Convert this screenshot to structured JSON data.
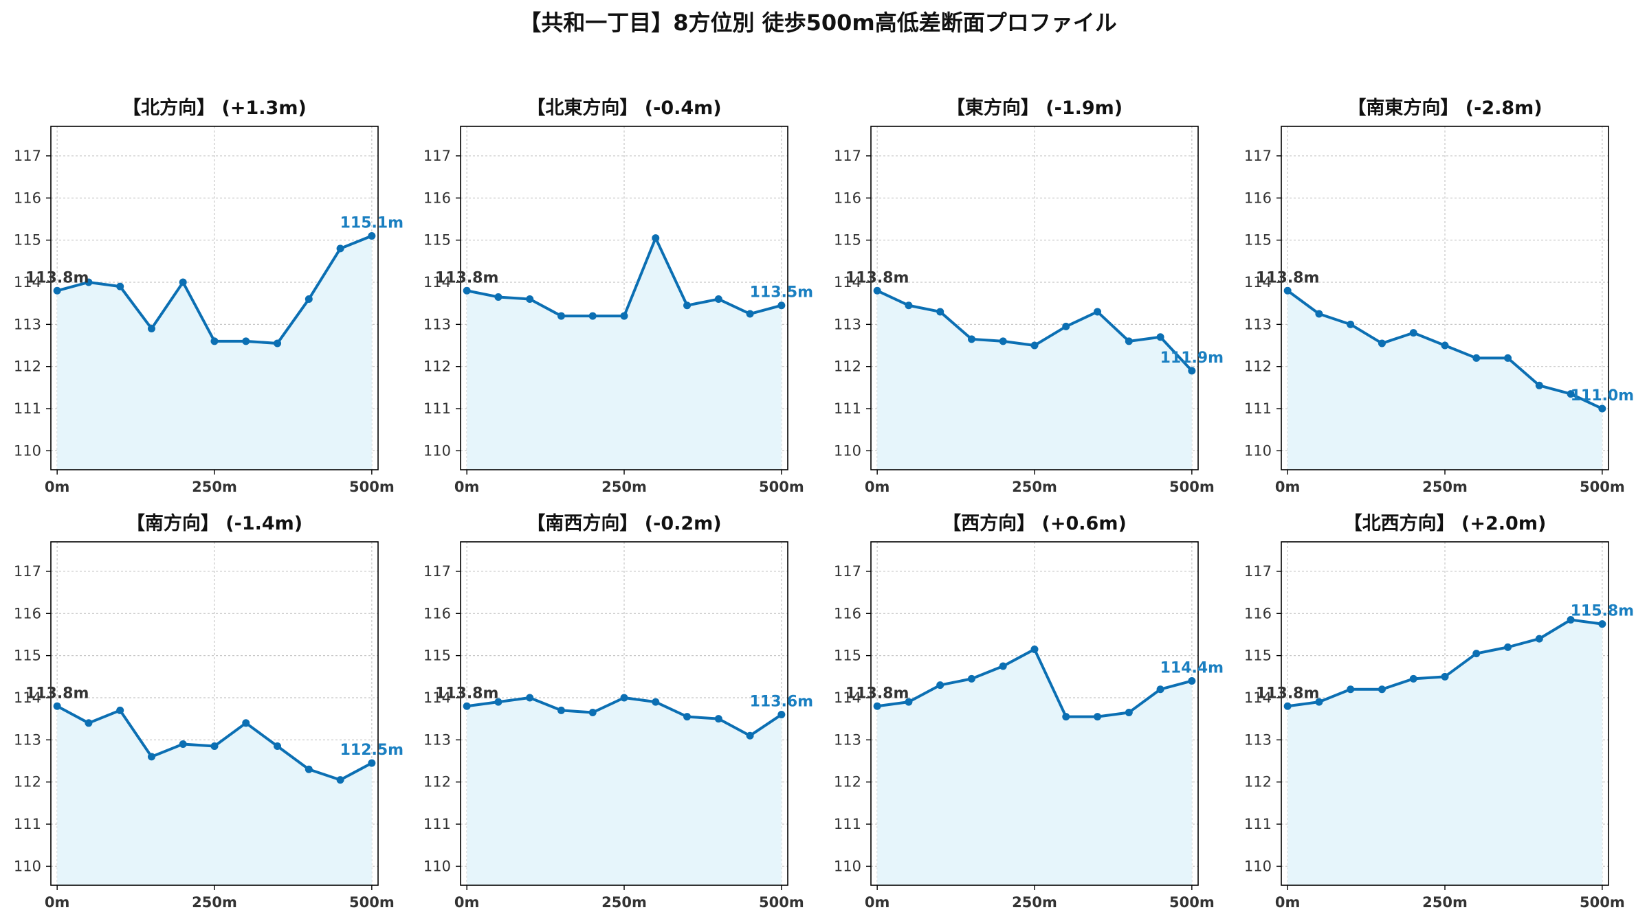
{
  "figure": {
    "title": "【共和一丁目】8方位別 徒歩500m高低差断面プロファイル"
  },
  "colors": {
    "line": "#1f77b4",
    "line_dark": "#0b6fb3",
    "fill": "#e6f5fb",
    "grid": "#c8c8c8",
    "axis": "#000000",
    "tick_text": "#333333",
    "start_label": "#333333",
    "end_label": "#1a7fc1"
  },
  "chart_data": [
    {
      "type": "area",
      "title": "【北方向】 (+1.3m)",
      "x": [
        0,
        50,
        100,
        150,
        200,
        250,
        300,
        350,
        400,
        450,
        500
      ],
      "values": [
        113.8,
        114.0,
        113.9,
        112.9,
        114.0,
        112.6,
        112.6,
        112.55,
        113.6,
        114.8,
        115.1
      ],
      "xticks": [
        0,
        250,
        500
      ],
      "xtick_labels": [
        "0m",
        "250m",
        "500m"
      ],
      "yticks": [
        110,
        111,
        112,
        113,
        114,
        115,
        116,
        117
      ],
      "ytick_labels": [
        "110",
        "111",
        "112",
        "113",
        "114",
        "115",
        "116",
        "117"
      ],
      "xlim": [
        -10,
        510
      ],
      "ylim": [
        109.55,
        117.7
      ],
      "grid": true,
      "start_label": "113.8m",
      "end_label": "115.1m"
    },
    {
      "type": "area",
      "title": "【北東方向】 (-0.4m)",
      "x": [
        0,
        50,
        100,
        150,
        200,
        250,
        300,
        350,
        400,
        450,
        500
      ],
      "values": [
        113.8,
        113.65,
        113.6,
        113.2,
        113.2,
        113.2,
        115.05,
        113.45,
        113.6,
        113.25,
        113.45
      ],
      "xticks": [
        0,
        250,
        500
      ],
      "xtick_labels": [
        "0m",
        "250m",
        "500m"
      ],
      "yticks": [
        110,
        111,
        112,
        113,
        114,
        115,
        116,
        117
      ],
      "ytick_labels": [
        "110",
        "111",
        "112",
        "113",
        "114",
        "115",
        "116",
        "117"
      ],
      "xlim": [
        -10,
        510
      ],
      "ylim": [
        109.55,
        117.7
      ],
      "grid": true,
      "start_label": "113.8m",
      "end_label": "113.5m"
    },
    {
      "type": "area",
      "title": "【東方向】 (-1.9m)",
      "x": [
        0,
        50,
        100,
        150,
        200,
        250,
        300,
        350,
        400,
        450,
        500
      ],
      "values": [
        113.8,
        113.45,
        113.3,
        112.65,
        112.6,
        112.5,
        112.95,
        113.3,
        112.6,
        112.7,
        111.9
      ],
      "xticks": [
        0,
        250,
        500
      ],
      "xtick_labels": [
        "0m",
        "250m",
        "500m"
      ],
      "yticks": [
        110,
        111,
        112,
        113,
        114,
        115,
        116,
        117
      ],
      "ytick_labels": [
        "110",
        "111",
        "112",
        "113",
        "114",
        "115",
        "116",
        "117"
      ],
      "xlim": [
        -10,
        510
      ],
      "ylim": [
        109.55,
        117.7
      ],
      "grid": true,
      "start_label": "113.8m",
      "end_label": "111.9m"
    },
    {
      "type": "area",
      "title": "【南東方向】 (-2.8m)",
      "x": [
        0,
        50,
        100,
        150,
        200,
        250,
        300,
        350,
        400,
        450,
        500
      ],
      "values": [
        113.8,
        113.25,
        113.0,
        112.55,
        112.8,
        112.5,
        112.2,
        112.2,
        111.55,
        111.35,
        111.0
      ],
      "xticks": [
        0,
        250,
        500
      ],
      "xtick_labels": [
        "0m",
        "250m",
        "500m"
      ],
      "yticks": [
        110,
        111,
        112,
        113,
        114,
        115,
        116,
        117
      ],
      "ytick_labels": [
        "110",
        "111",
        "112",
        "113",
        "114",
        "115",
        "116",
        "117"
      ],
      "xlim": [
        -10,
        510
      ],
      "ylim": [
        109.55,
        117.7
      ],
      "grid": true,
      "start_label": "113.8m",
      "end_label": "111.0m"
    },
    {
      "type": "area",
      "title": "【南方向】 (-1.4m)",
      "x": [
        0,
        50,
        100,
        150,
        200,
        250,
        300,
        350,
        400,
        450,
        500
      ],
      "values": [
        113.8,
        113.4,
        113.7,
        112.6,
        112.9,
        112.85,
        113.4,
        112.85,
        112.3,
        112.05,
        112.45
      ],
      "xticks": [
        0,
        250,
        500
      ],
      "xtick_labels": [
        "0m",
        "250m",
        "500m"
      ],
      "yticks": [
        110,
        111,
        112,
        113,
        114,
        115,
        116,
        117
      ],
      "ytick_labels": [
        "110",
        "111",
        "112",
        "113",
        "114",
        "115",
        "116",
        "117"
      ],
      "xlim": [
        -10,
        510
      ],
      "ylim": [
        109.55,
        117.7
      ],
      "grid": true,
      "start_label": "113.8m",
      "end_label": "112.5m"
    },
    {
      "type": "area",
      "title": "【南西方向】 (-0.2m)",
      "x": [
        0,
        50,
        100,
        150,
        200,
        250,
        300,
        350,
        400,
        450,
        500
      ],
      "values": [
        113.8,
        113.9,
        114.0,
        113.7,
        113.65,
        114.0,
        113.9,
        113.55,
        113.5,
        113.1,
        113.6
      ],
      "xticks": [
        0,
        250,
        500
      ],
      "xtick_labels": [
        "0m",
        "250m",
        "500m"
      ],
      "yticks": [
        110,
        111,
        112,
        113,
        114,
        115,
        116,
        117
      ],
      "ytick_labels": [
        "110",
        "111",
        "112",
        "113",
        "114",
        "115",
        "116",
        "117"
      ],
      "xlim": [
        -10,
        510
      ],
      "ylim": [
        109.55,
        117.7
      ],
      "grid": true,
      "start_label": "113.8m",
      "end_label": "113.6m"
    },
    {
      "type": "area",
      "title": "【西方向】 (+0.6m)",
      "x": [
        0,
        50,
        100,
        150,
        200,
        250,
        300,
        350,
        400,
        450,
        500
      ],
      "values": [
        113.8,
        113.9,
        114.3,
        114.45,
        114.75,
        115.15,
        113.55,
        113.55,
        113.65,
        114.2,
        114.4
      ],
      "xticks": [
        0,
        250,
        500
      ],
      "xtick_labels": [
        "0m",
        "250m",
        "500m"
      ],
      "yticks": [
        110,
        111,
        112,
        113,
        114,
        115,
        116,
        117
      ],
      "ytick_labels": [
        "110",
        "111",
        "112",
        "113",
        "114",
        "115",
        "116",
        "117"
      ],
      "xlim": [
        -10,
        510
      ],
      "ylim": [
        109.55,
        117.7
      ],
      "grid": true,
      "start_label": "113.8m",
      "end_label": "114.4m"
    },
    {
      "type": "area",
      "title": "【北西方向】 (+2.0m)",
      "x": [
        0,
        50,
        100,
        150,
        200,
        250,
        300,
        350,
        400,
        450,
        500
      ],
      "values": [
        113.8,
        113.9,
        114.2,
        114.2,
        114.45,
        114.5,
        115.05,
        115.2,
        115.4,
        115.85,
        115.75
      ],
      "xticks": [
        0,
        250,
        500
      ],
      "xtick_labels": [
        "0m",
        "250m",
        "500m"
      ],
      "yticks": [
        110,
        111,
        112,
        113,
        114,
        115,
        116,
        117
      ],
      "ytick_labels": [
        "110",
        "111",
        "112",
        "113",
        "114",
        "115",
        "116",
        "117"
      ],
      "xlim": [
        -10,
        510
      ],
      "ylim": [
        109.55,
        117.7
      ],
      "grid": true,
      "start_label": "113.8m",
      "end_label": "115.8m"
    }
  ]
}
